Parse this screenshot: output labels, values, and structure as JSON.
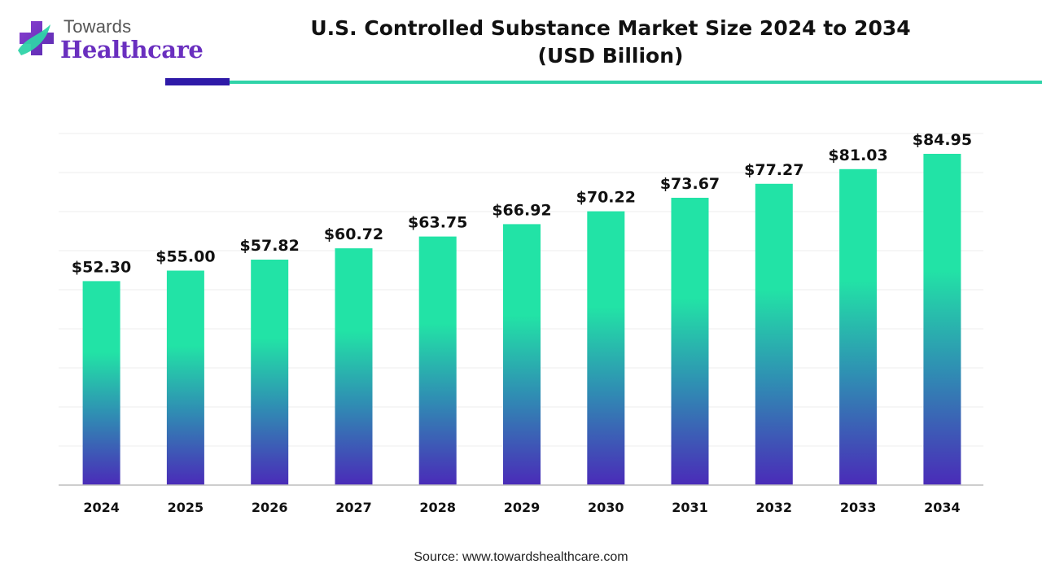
{
  "logo": {
    "line1": "Towards",
    "line2": "Healthcare"
  },
  "title": {
    "line1": "U.S. Controlled Substance Market Size 2024 to 2034",
    "line2": "(USD Billion)"
  },
  "source": "Source: www.towardshealthcare.com",
  "colors": {
    "bar_top": "#22e3a6",
    "bar_mid": "#2f8fb3",
    "bar_bottom": "#4a2bb8",
    "rule_dark": "#2e1aa8",
    "rule_light": "#2fd3a8",
    "logo_text": "#6a2fbf"
  },
  "chart_data": {
    "type": "bar",
    "categories": [
      "2024",
      "2025",
      "2026",
      "2027",
      "2028",
      "2029",
      "2030",
      "2031",
      "2032",
      "2033",
      "2034"
    ],
    "values": [
      52.3,
      55.0,
      57.82,
      60.72,
      63.75,
      66.92,
      70.22,
      73.67,
      77.27,
      81.03,
      84.95
    ],
    "data_labels": [
      "$52.30",
      "$55.00",
      "$57.82",
      "$60.72",
      "$63.75",
      "$66.92",
      "$70.22",
      "$73.67",
      "$77.27",
      "$81.03",
      "$84.95"
    ],
    "title": "U.S. Controlled Substance Market Size 2024 to 2034 (USD Billion)",
    "xlabel": "",
    "ylabel": "",
    "ylim": [
      0,
      90
    ],
    "grid": true,
    "legend": "none"
  }
}
